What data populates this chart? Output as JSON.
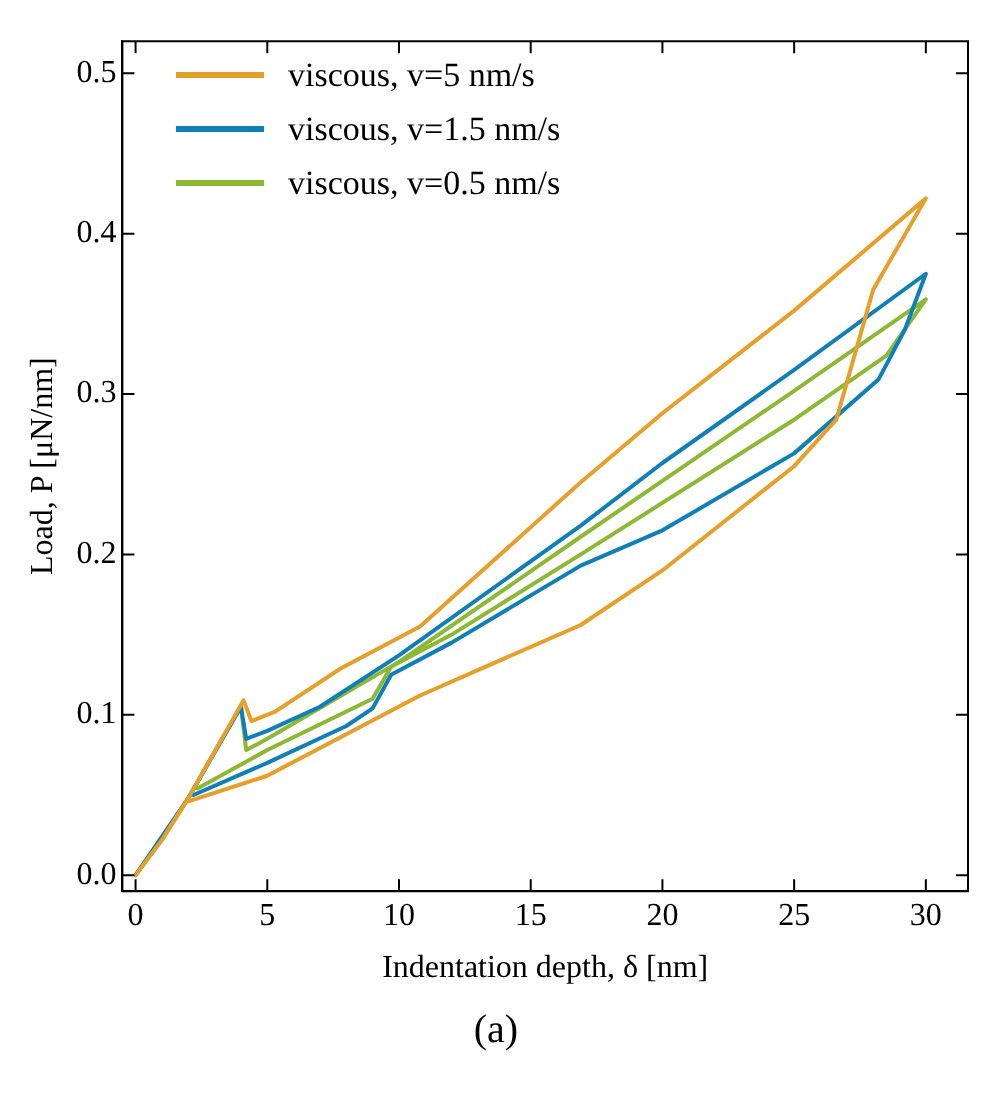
{
  "chart_data": {
    "type": "line",
    "xlabel": "Indentation depth, δ [nm]",
    "ylabel": "Load, P [μN/nm]",
    "annotations": [
      "(a)"
    ],
    "xlim": [
      -0.5,
      31.6
    ],
    "ylim": [
      -0.01,
      0.52
    ],
    "xticks": [
      0,
      5,
      10,
      15,
      20,
      25,
      30
    ],
    "yticks": [
      {
        "value": 0,
        "label": "0.0"
      },
      {
        "value": 0.1,
        "label": "0.1"
      },
      {
        "value": 0.2,
        "label": "0.2"
      },
      {
        "value": 0.3,
        "label": "0.3"
      },
      {
        "value": 0.4,
        "label": "0.4"
      },
      {
        "value": 0.5,
        "label": "0.5"
      }
    ],
    "grid": false,
    "legend": "top left",
    "marker": "none",
    "line_style": "solid",
    "series": [
      {
        "name": "viscous, v=5 nm/s",
        "color": "#e69f28",
        "x": [
          0,
          1,
          2,
          3,
          4.1,
          4.4,
          5.3,
          7.8,
          10.8,
          16.9,
          20,
          25,
          30,
          28,
          26.6,
          25,
          20,
          16.9,
          10.8,
          5,
          2
        ],
        "values": [
          0,
          0.022,
          0.048,
          0.077,
          0.109,
          0.096,
          0.102,
          0.129,
          0.155,
          0.245,
          0.288,
          0.352,
          0.422,
          0.365,
          0.284,
          0.255,
          0.19,
          0.156,
          0.112,
          0.062,
          0.046
        ]
      },
      {
        "name": "viscous, v=1.5 nm/s",
        "color": "#0f7fb8",
        "x": [
          0,
          2,
          4,
          4.2,
          5,
          7,
          10,
          16.9,
          20,
          25,
          30,
          29.2,
          28.2,
          25,
          20,
          16.9,
          12,
          9.7,
          9,
          8,
          5,
          2.2
        ],
        "values": [
          0,
          0.048,
          0.105,
          0.085,
          0.09,
          0.105,
          0.137,
          0.218,
          0.257,
          0.315,
          0.375,
          0.34,
          0.309,
          0.263,
          0.215,
          0.193,
          0.145,
          0.125,
          0.104,
          0.093,
          0.07,
          0.05
        ]
      },
      {
        "name": "viscous, v=0.5 nm/s",
        "color": "#8db834",
        "x": [
          0,
          1,
          2,
          3,
          4,
          4.2,
          5,
          10,
          16.9,
          25,
          30,
          28.5,
          25,
          16.9,
          12,
          9.7,
          9,
          5,
          2.35
        ],
        "values": [
          0,
          0.022,
          0.048,
          0.077,
          0.105,
          0.078,
          0.085,
          0.133,
          0.211,
          0.302,
          0.359,
          0.324,
          0.284,
          0.2,
          0.15,
          0.13,
          0.11,
          0.078,
          0.054
        ]
      }
    ]
  }
}
